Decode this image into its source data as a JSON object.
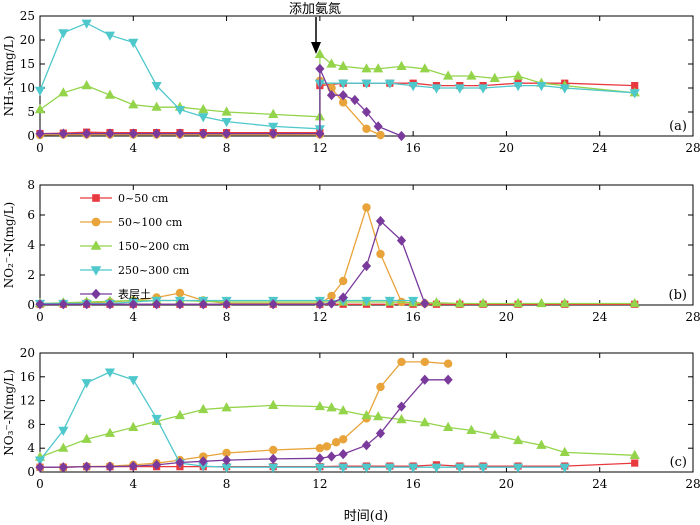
{
  "figure": {
    "xlabel": "时间(d)",
    "annotation": "添加氨氮",
    "annotation_x": 12,
    "legend_placement": "top-left, panel (b)"
  },
  "colors": {
    "0~50 cm": "#e8393f",
    "50~100 cm": "#e8a33a",
    "150~200 cm": "#93d44a",
    "250~300 cm": "#4fc8cc",
    "表层土": "#7a3a9c"
  },
  "chart_data": [
    {
      "type": "line",
      "panel_label": "(a)",
      "ylabel": "NH₃-N(mg/L)",
      "xlim": [
        0,
        28
      ],
      "ylim": [
        0,
        25
      ],
      "xticks": [
        0,
        4,
        8,
        12,
        16,
        20,
        24,
        28
      ],
      "yticks": [
        0,
        5,
        10,
        15,
        20,
        25
      ],
      "series": [
        {
          "name": "0~50 cm",
          "marker": "square",
          "x": [
            0,
            1,
            2,
            3,
            4,
            5,
            6,
            7,
            8,
            10,
            12,
            12,
            13,
            14,
            15,
            16,
            17,
            18,
            19,
            20.5,
            22.5,
            25.5
          ],
          "y": [
            0.5,
            0.6,
            0.8,
            0.7,
            0.7,
            0.7,
            0.7,
            0.7,
            0.7,
            0.7,
            0.7,
            10.5,
            11,
            11,
            11,
            11,
            10.5,
            10.5,
            10.5,
            11,
            11,
            10.5
          ]
        },
        {
          "name": "50~100 cm",
          "marker": "circle",
          "x": [
            0,
            1,
            2,
            3,
            4,
            5,
            6,
            7,
            8,
            10,
            12,
            12,
            12.5,
            13,
            14,
            14.6
          ],
          "y": [
            0.2,
            0.3,
            0.3,
            0.3,
            0.3,
            0.3,
            0.3,
            0.3,
            0.3,
            0.3,
            0.3,
            11.5,
            10,
            7,
            1.5,
            0.2
          ]
        },
        {
          "name": "150~200 cm",
          "marker": "triangle-up",
          "x": [
            0,
            1,
            2,
            3,
            4,
            5,
            6,
            7,
            8,
            10,
            12,
            12,
            12.5,
            13,
            14,
            14.5,
            15.5,
            16.5,
            17.5,
            18.5,
            19.5,
            20.5,
            21.5,
            22.5,
            25.5
          ],
          "y": [
            5.5,
            9,
            10.5,
            8.5,
            6.5,
            6,
            6,
            5.5,
            5,
            4.5,
            4,
            17,
            15,
            14.5,
            14,
            14,
            14.5,
            14,
            12.5,
            12.5,
            12,
            12.5,
            11,
            10.5,
            9
          ]
        },
        {
          "name": "250~300 cm",
          "marker": "triangle-down",
          "x": [
            0,
            1,
            2,
            3,
            4,
            5,
            6,
            7,
            8,
            10,
            12,
            12,
            13,
            14,
            15,
            16,
            17,
            18,
            19,
            20.5,
            21.5,
            22.5,
            25.5
          ],
          "y": [
            9.5,
            21.5,
            23.5,
            21,
            19.5,
            10.5,
            5.5,
            4,
            3,
            2,
            1.5,
            11,
            11,
            11,
            11,
            10.5,
            10,
            10,
            10,
            10.5,
            10.5,
            10,
            9
          ]
        },
        {
          "name": "表层土",
          "marker": "diamond",
          "x": [
            0,
            1,
            2,
            3,
            4,
            5,
            6,
            7,
            8,
            10,
            12,
            12,
            12.5,
            13,
            13.5,
            14,
            14.5,
            15.5
          ],
          "y": [
            0.5,
            0.5,
            0.5,
            0.5,
            0.5,
            0.5,
            0.5,
            0.5,
            0.5,
            0.5,
            0.5,
            14,
            8.5,
            8.5,
            7.5,
            5,
            2,
            0
          ]
        }
      ]
    },
    {
      "type": "line",
      "panel_label": "(b)",
      "ylabel": "NO₂⁻-N(mg/L)",
      "xlim": [
        0,
        28
      ],
      "ylim": [
        0,
        8
      ],
      "xticks": [
        0,
        4,
        8,
        12,
        16,
        20,
        24,
        28
      ],
      "yticks": [
        0,
        2,
        4,
        6,
        8
      ],
      "series": [
        {
          "name": "0~50 cm",
          "marker": "square",
          "x": [
            0,
            1,
            2,
            3,
            4,
            5,
            6,
            7,
            8,
            10,
            12,
            13,
            14,
            15,
            16,
            17,
            18,
            19,
            20.5,
            22.5,
            25.5
          ],
          "y": [
            0.05,
            0.05,
            0.05,
            0.05,
            0.05,
            0.05,
            0.05,
            0.05,
            0.05,
            0.05,
            0.05,
            0.05,
            0.05,
            0.05,
            0.05,
            0.05,
            0.05,
            0.05,
            0.05,
            0.05,
            0.05
          ]
        },
        {
          "name": "50~100 cm",
          "marker": "circle",
          "x": [
            0,
            1,
            2,
            3,
            4,
            5,
            6,
            7,
            8,
            10,
            12,
            12.5,
            13,
            14,
            14.6,
            15.5,
            16.5
          ],
          "y": [
            0.05,
            0.1,
            0.15,
            0.2,
            0.3,
            0.5,
            0.8,
            0.3,
            0.1,
            0.1,
            0.1,
            0.6,
            1.6,
            6.5,
            3.4,
            0.2,
            0.1
          ]
        },
        {
          "name": "150~200 cm",
          "marker": "triangle-up",
          "x": [
            0,
            1,
            2,
            3,
            4,
            5,
            6,
            7,
            8,
            10,
            12,
            13,
            14,
            15,
            16,
            17,
            18,
            19,
            20.5,
            21.5,
            22.5,
            25.5
          ],
          "y": [
            0.1,
            0.15,
            0.2,
            0.25,
            0.3,
            0.3,
            0.3,
            0.25,
            0.2,
            0.2,
            0.2,
            0.2,
            0.2,
            0.2,
            0.15,
            0.15,
            0.1,
            0.1,
            0.1,
            0.1,
            0.1,
            0.1
          ]
        },
        {
          "name": "250~300 cm",
          "marker": "triangle-down",
          "x": [
            0,
            1,
            2,
            3,
            4,
            5,
            6,
            7,
            8,
            10,
            12,
            13,
            14,
            15,
            16
          ],
          "y": [
            0.1,
            0.1,
            0.1,
            0.1,
            0.2,
            0.3,
            0.3,
            0.3,
            0.3,
            0.3,
            0.3,
            0.3,
            0.3,
            0.3,
            0.3
          ]
        },
        {
          "name": "表层土",
          "marker": "diamond",
          "x": [
            0,
            1,
            2,
            3,
            4,
            5,
            6,
            7,
            8,
            10,
            12,
            12.5,
            13,
            14,
            14.6,
            15.5,
            16.5
          ],
          "y": [
            0.05,
            0.05,
            0.05,
            0.05,
            0.05,
            0.05,
            0.05,
            0.05,
            0.05,
            0.05,
            0.05,
            0.1,
            0.5,
            2.6,
            5.6,
            4.3,
            0.1
          ]
        }
      ]
    },
    {
      "type": "line",
      "panel_label": "(c)",
      "ylabel": "NO₃⁻-N(mg/L)",
      "xlim": [
        0,
        28
      ],
      "ylim": [
        0,
        20
      ],
      "xticks": [
        0,
        4,
        8,
        12,
        16,
        20,
        24,
        28
      ],
      "yticks": [
        0,
        4,
        8,
        12,
        16,
        20
      ],
      "series": [
        {
          "name": "0~50 cm",
          "marker": "square",
          "x": [
            0,
            1,
            2,
            3,
            4,
            5,
            6,
            7,
            8,
            10,
            12,
            13,
            14,
            15,
            16,
            17,
            18,
            19,
            20.5,
            22.5,
            25.5
          ],
          "y": [
            0.8,
            0.8,
            0.9,
            0.9,
            0.9,
            0.9,
            0.9,
            0.9,
            0.9,
            0.9,
            0.9,
            1.0,
            1.0,
            1.0,
            1.0,
            1.2,
            1.0,
            1.0,
            1.0,
            1.0,
            1.5
          ]
        },
        {
          "name": "50~100 cm",
          "marker": "circle",
          "x": [
            0,
            1,
            2,
            3,
            4,
            5,
            6,
            7,
            8,
            10,
            12,
            12.3,
            12.7,
            13,
            14,
            14.6,
            15.5,
            16.5,
            17.5
          ],
          "y": [
            0.8,
            0.8,
            0.9,
            1.0,
            1.2,
            1.5,
            2.0,
            2.6,
            3.2,
            3.7,
            4.0,
            4.3,
            5.0,
            5.5,
            9.0,
            14.3,
            18.5,
            18.5,
            18.2
          ]
        },
        {
          "name": "150~200 cm",
          "marker": "triangle-up",
          "x": [
            0,
            1,
            2,
            3,
            4,
            5,
            6,
            7,
            8,
            10,
            12,
            12.5,
            13,
            14,
            14.5,
            15.5,
            16.5,
            17.5,
            18.5,
            19.5,
            20.5,
            21.5,
            22.5,
            25.5
          ],
          "y": [
            2.5,
            4.0,
            5.5,
            6.5,
            7.5,
            8.5,
            9.5,
            10.5,
            10.8,
            11.2,
            11.0,
            10.8,
            10.3,
            9.5,
            9.3,
            8.8,
            8.3,
            7.5,
            7.0,
            6.2,
            5.3,
            4.5,
            3.3,
            2.8
          ]
        },
        {
          "name": "250~300 cm",
          "marker": "triangle-down",
          "x": [
            0,
            1,
            2,
            3,
            4,
            5,
            6,
            7,
            8,
            10,
            12,
            13,
            14,
            15,
            16,
            17,
            18,
            19,
            20.5,
            22.5
          ],
          "y": [
            2.0,
            7.0,
            15.0,
            16.8,
            15.5,
            9.0,
            1.5,
            1.0,
            0.8,
            0.8,
            0.8,
            0.8,
            0.8,
            0.8,
            0.8,
            0.8,
            0.8,
            0.8,
            0.8,
            0.8
          ]
        },
        {
          "name": "表层土",
          "marker": "diamond",
          "x": [
            0,
            1,
            2,
            3,
            4,
            5,
            6,
            7,
            8,
            10,
            12,
            12.5,
            13,
            14,
            14.6,
            15.5,
            16.5,
            17.5
          ],
          "y": [
            0.8,
            0.8,
            0.9,
            0.9,
            1.0,
            1.2,
            1.6,
            1.8,
            2.0,
            2.2,
            2.3,
            2.6,
            3.0,
            4.5,
            6.5,
            11.0,
            15.5,
            15.5
          ]
        }
      ]
    }
  ]
}
